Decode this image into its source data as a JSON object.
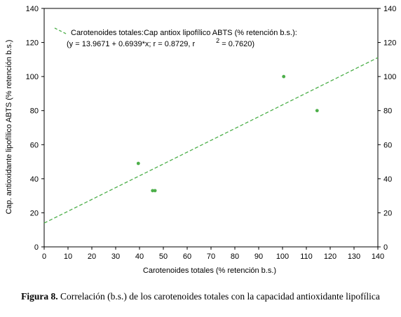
{
  "chart_data": {
    "type": "scatter",
    "xlabel": "Carotenoides totales (% retención b.s.)",
    "ylabel": "Cap. antioxidante lipofílico ABTS (% retención b.s.)",
    "xlim": [
      0,
      140
    ],
    "ylim": [
      0,
      140
    ],
    "x_ticks": [
      0,
      10,
      20,
      30,
      40,
      50,
      60,
      70,
      80,
      90,
      100,
      110,
      120,
      130,
      140
    ],
    "y_ticks": [
      0,
      20,
      40,
      60,
      80,
      100,
      120,
      140
    ],
    "right_axis_ticks": true,
    "grid": false,
    "legend_position": "top-left",
    "point_color": "#4daf4a",
    "line_color": "#4daf4a",
    "series": [
      {
        "name": "Carotenoides totales:Cap antiox lipofílico ABTS (% retención b.s.):",
        "points": [
          {
            "x": 39.5,
            "y": 49
          },
          {
            "x": 45.5,
            "y": 33
          },
          {
            "x": 46.5,
            "y": 33
          },
          {
            "x": 100.5,
            "y": 100
          },
          {
            "x": 114.5,
            "y": 80
          }
        ]
      }
    ],
    "regression": {
      "intercept": 13.9671,
      "slope": 0.6939,
      "x_range": [
        0,
        140
      ],
      "legend_line1": "Carotenoides totales:Cap antiox lipofílico ABTS (% retención b.s.):",
      "legend_line2a": "y = 13.9671 + 0.6939*x; r = 0.8729, r",
      "legend_sup": "2",
      "legend_line2b": " = 0.7620)"
    }
  },
  "caption": {
    "label": "Figura 8.",
    "text": " Correlación (b.s.) de los carotenoides totales con la capacidad antioxidante lipofílica"
  }
}
